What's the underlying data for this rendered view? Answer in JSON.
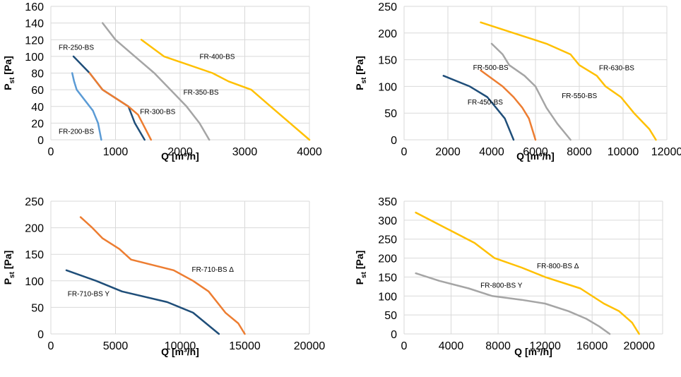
{
  "colors": {
    "navy": "#1f4e79",
    "lightblue": "#5b9bd5",
    "orange": "#ed7d31",
    "gray": "#a5a5a5",
    "yellow": "#ffc000",
    "grid": "#d9d9d9"
  },
  "chart_data": [
    {
      "type": "line",
      "xlabel": "Q [m³/h]",
      "ylabel_main": "P",
      "ylabel_sub": "st",
      "ylabel_unit": " [Pa]",
      "grid": true,
      "xlim": [
        0,
        4000
      ],
      "ylim": [
        0,
        160
      ],
      "xticks": [
        "0",
        "1000",
        "2000",
        "3000",
        "4000"
      ],
      "yticks": [
        "0",
        "20",
        "40",
        "60",
        "80",
        "100",
        "120",
        "140",
        "160"
      ],
      "series": [
        {
          "name": "FR-200-BS",
          "color": "#5b9bd5",
          "x": [
            330,
            360,
            400,
            550,
            650,
            730,
            780
          ],
          "y": [
            80,
            70,
            60,
            45,
            35,
            20,
            0
          ]
        },
        {
          "name": "FR-250-BS",
          "color": "#1f4e79",
          "x": [
            350,
            600,
            800,
            1000,
            1200,
            1300,
            1450
          ],
          "y": [
            100,
            80,
            60,
            50,
            40,
            20,
            0
          ]
        },
        {
          "name": "FR-300-BS",
          "color": "#ed7d31",
          "x": [
            600,
            800,
            1000,
            1200,
            1350,
            1450,
            1550
          ],
          "y": [
            80,
            60,
            50,
            40,
            30,
            15,
            0
          ]
        },
        {
          "name": "FR-350-BS",
          "color": "#a5a5a5",
          "x": [
            800,
            1000,
            1300,
            1600,
            1850,
            2100,
            2300,
            2450
          ],
          "y": [
            140,
            120,
            100,
            80,
            60,
            40,
            20,
            0
          ]
        },
        {
          "name": "FR-400-BS",
          "color": "#ffc000",
          "x": [
            1400,
            1750,
            2500,
            2750,
            3100,
            3400,
            3700,
            4000
          ],
          "y": [
            120,
            100,
            80,
            70,
            60,
            40,
            20,
            0
          ]
        }
      ],
      "annotations": [
        {
          "text": "FR-250-BS",
          "x": 120,
          "y": 108
        },
        {
          "text": "FR-200-BS",
          "x": 120,
          "y": 7
        },
        {
          "text": "FR-300-BS",
          "x": 1380,
          "y": 31
        },
        {
          "text": "FR-350-BS",
          "x": 2050,
          "y": 54
        },
        {
          "text": "FR-400-BS",
          "x": 2300,
          "y": 97
        }
      ]
    },
    {
      "type": "line",
      "xlabel": "Q [m³/h]",
      "ylabel_main": "P",
      "ylabel_sub": "st",
      "ylabel_unit": " [Pa]",
      "grid": true,
      "xlim": [
        0,
        12000
      ],
      "ylim": [
        0,
        250
      ],
      "xticks": [
        "0",
        "2000",
        "4000",
        "6000",
        "8000",
        "10000",
        "12000"
      ],
      "yticks": [
        "0",
        "50",
        "100",
        "150",
        "200",
        "250"
      ],
      "series": [
        {
          "name": "FR-450-BS",
          "color": "#1f4e79",
          "x": [
            1800,
            3000,
            3800,
            4200,
            4600,
            5000
          ],
          "y": [
            120,
            100,
            80,
            60,
            40,
            0
          ]
        },
        {
          "name": "FR-500-BS",
          "color": "#ed7d31",
          "x": [
            3500,
            4500,
            5000,
            5400,
            5700,
            6000
          ],
          "y": [
            130,
            100,
            80,
            60,
            40,
            0
          ]
        },
        {
          "name": "FR-550-BS",
          "color": "#a5a5a5",
          "x": [
            4000,
            4500,
            4800,
            5500,
            6000,
            6500,
            7000,
            7600
          ],
          "y": [
            180,
            160,
            140,
            120,
            100,
            60,
            30,
            0
          ]
        },
        {
          "name": "FR-630-BS",
          "color": "#ffc000",
          "x": [
            3500,
            5000,
            6500,
            7600,
            8000,
            8800,
            9200,
            9900,
            10500,
            11200,
            11500
          ],
          "y": [
            220,
            200,
            180,
            160,
            140,
            120,
            100,
            80,
            50,
            20,
            0
          ]
        }
      ],
      "annotations": [
        {
          "text": "FR-500-BS",
          "x": 3150,
          "y": 131
        },
        {
          "text": "FR-450-BS",
          "x": 2900,
          "y": 66
        },
        {
          "text": "FR-550-BS",
          "x": 7200,
          "y": 78
        },
        {
          "text": "FR-630-BS",
          "x": 8900,
          "y": 130
        }
      ]
    },
    {
      "type": "line",
      "xlabel": "Q [m³/h]",
      "ylabel_main": "P",
      "ylabel_sub": "st",
      "ylabel_unit": " [Pa]",
      "grid": true,
      "xlim": [
        0,
        20000
      ],
      "ylim": [
        0,
        250
      ],
      "xticks": [
        "0",
        "5000",
        "10000",
        "15000",
        "20000"
      ],
      "yticks": [
        "0",
        "50",
        "100",
        "150",
        "200",
        "250"
      ],
      "series": [
        {
          "name": "FR-710-BS Y",
          "color": "#1f4e79",
          "x": [
            1200,
            3500,
            5500,
            9000,
            11000,
            13000
          ],
          "y": [
            120,
            100,
            80,
            60,
            40,
            0
          ]
        },
        {
          "name": "FR-710-BS Δ",
          "color": "#ed7d31",
          "x": [
            2300,
            3200,
            4000,
            5300,
            6200,
            9500,
            11000,
            12200,
            13500,
            14500,
            15000
          ],
          "y": [
            220,
            200,
            180,
            160,
            140,
            120,
            100,
            80,
            40,
            20,
            0
          ]
        }
      ],
      "annotations": [
        {
          "text": "FR-710-BS Δ",
          "x": 10900,
          "y": 117
        },
        {
          "text": "FR-710-BS Y",
          "x": 1300,
          "y": 71
        }
      ]
    },
    {
      "type": "line",
      "xlabel": "Q [m³/h]",
      "ylabel_main": "P",
      "ylabel_sub": "st",
      "ylabel_unit": " [Pa]",
      "grid": true,
      "xlim": [
        0,
        22000
      ],
      "ylim": [
        0,
        350
      ],
      "xticks": [
        "0",
        "4000",
        "8000",
        "12000",
        "16000",
        "20000"
      ],
      "yticks": [
        "0",
        "50",
        "100",
        "150",
        "200",
        "250",
        "300",
        "350"
      ],
      "series": [
        {
          "name": "FR-800-BS Y",
          "color": "#a5a5a5",
          "x": [
            1000,
            3000,
            5500,
            7500,
            10000,
            12000,
            14000,
            15500,
            16600,
            17500
          ],
          "y": [
            160,
            140,
            120,
            100,
            90,
            80,
            60,
            40,
            20,
            0
          ]
        },
        {
          "name": "FR-800-BS Δ",
          "color": "#ffc000",
          "x": [
            1000,
            3500,
            6000,
            7700,
            10000,
            12000,
            15000,
            17000,
            18300,
            19400,
            20000
          ],
          "y": [
            320,
            280,
            240,
            200,
            175,
            150,
            120,
            80,
            60,
            30,
            0
          ]
        }
      ],
      "annotations": [
        {
          "text": "FR-800-BS Δ",
          "x": 11300,
          "y": 173
        },
        {
          "text": "FR-800-BS Y",
          "x": 6500,
          "y": 122
        }
      ]
    }
  ]
}
